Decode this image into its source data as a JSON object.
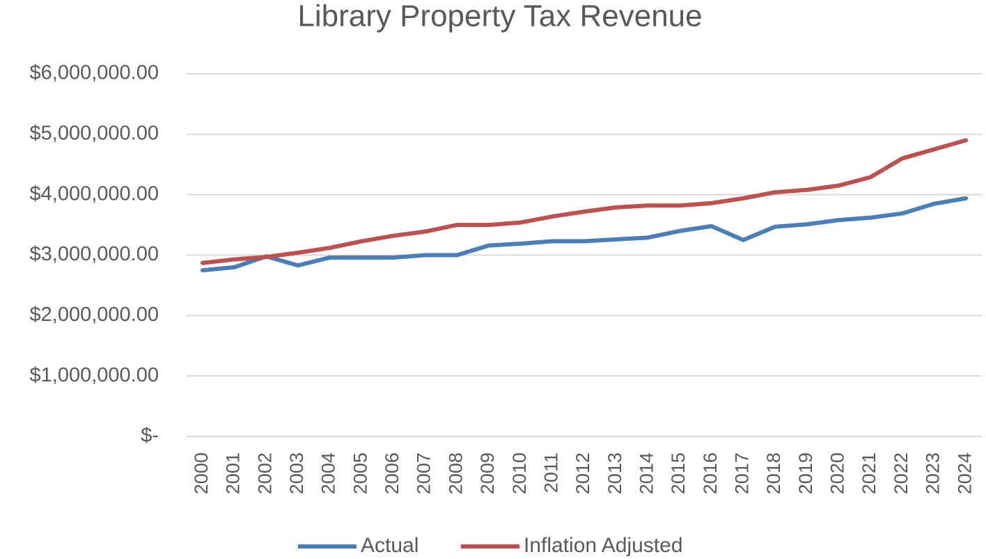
{
  "chart_data": {
    "type": "line",
    "title": "Library Property Tax Revenue",
    "categories": [
      "2000",
      "2001",
      "2002",
      "2003",
      "2004",
      "2005",
      "2006",
      "2007",
      "2008",
      "2009",
      "2010",
      "2011",
      "2012",
      "2013",
      "2014",
      "2015",
      "2016",
      "2017",
      "2018",
      "2019",
      "2020",
      "2021",
      "2022",
      "2023",
      "2024"
    ],
    "series": [
      {
        "name": "Actual",
        "color": "#4a7ebb",
        "values": [
          2750000,
          2800000,
          2980000,
          2830000,
          2960000,
          2960000,
          2960000,
          3000000,
          3000000,
          3160000,
          3190000,
          3230000,
          3230000,
          3260000,
          3290000,
          3400000,
          3480000,
          3250000,
          3470000,
          3510000,
          3580000,
          3620000,
          3690000,
          3850000,
          3940000
        ]
      },
      {
        "name": "Inflation Adjusted",
        "color": "#c0504d",
        "values": [
          2870000,
          2930000,
          2970000,
          3040000,
          3120000,
          3230000,
          3320000,
          3390000,
          3500000,
          3500000,
          3540000,
          3640000,
          3720000,
          3790000,
          3820000,
          3820000,
          3860000,
          3940000,
          4040000,
          4080000,
          4150000,
          4290000,
          4600000,
          4750000,
          4900000
        ]
      }
    ],
    "ylim": [
      0,
      6000000
    ],
    "yticks": [
      {
        "value": 0,
        "label": "$-"
      },
      {
        "value": 1000000,
        "label": "$1,000,000.00"
      },
      {
        "value": 2000000,
        "label": "$2,000,000.00"
      },
      {
        "value": 3000000,
        "label": "$3,000,000.00"
      },
      {
        "value": 4000000,
        "label": "$4,000,000.00"
      },
      {
        "value": 5000000,
        "label": "$5,000,000.00"
      },
      {
        "value": 6000000,
        "label": "$6,000,000.00"
      }
    ],
    "grid": true,
    "legend": "bottom"
  }
}
